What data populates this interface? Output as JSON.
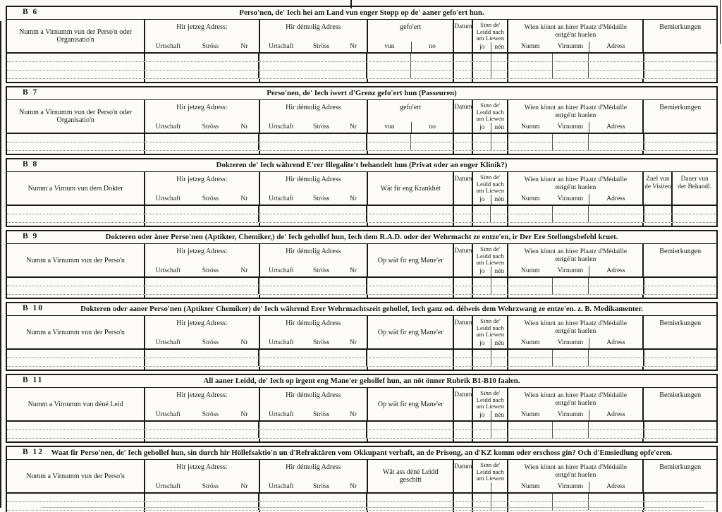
{
  "common": {
    "address_now": {
      "label": "Hir jetzeg Adress:",
      "subs": [
        "Urtschaft",
        "Ströss",
        "Nr"
      ]
    },
    "address_former": {
      "label": "Hir démolig Adress",
      "subs": [
        "Urtschaft",
        "Ströss",
        "Nr"
      ]
    },
    "datum_label": "Datum",
    "alive_col": {
      "lines": [
        "Sinn  de'",
        "Leidd  nach",
        "um Liewen"
      ],
      "subs": [
        "jo",
        "nén"
      ]
    },
    "medal_col": {
      "lines": [
        "Wien könnt an hirer Plaatz d'Médaille",
        "entgé'nt huelen"
      ],
      "subs": [
        "Numm",
        "Virnumm",
        "Adress"
      ]
    },
    "remarks_label": "Bemierkungen"
  },
  "sections": [
    {
      "id": "B 6",
      "title": "Perso'nen, de' Iech hei am Land vun enger Stopp  op de' aaner gefo'ert hun.",
      "name_label": "Numm a Virnumm vun der Perso'n oder Organisatio'n",
      "special": {
        "lines": [
          "gefo'ert"
        ],
        "subs": [
          "vun",
          "no"
        ]
      },
      "alive_subs": true,
      "rows": 3,
      "right": [
        [
          "Bemierkungen"
        ]
      ]
    },
    {
      "id": "B 7",
      "title": "Perso'nen, de' Iech iwert d'Grenz gefo'ert hun (Passeuren)",
      "name_label": "Numm a Virnumm vun der Perso'n oder Organisatio'n",
      "special": {
        "lines": [
          "gefo'ert"
        ],
        "subs": [
          "vun",
          "no"
        ]
      },
      "alive_subs": true,
      "rows": 2,
      "right": [
        [
          "Bemierkungen"
        ]
      ]
    },
    {
      "id": "B 8",
      "title": "Dokteren de' Iech während E'rer Illegalite't behandelt hun (Privat oder an enger Klinik?)",
      "name_label": "Numm a Virnum vun dem Dokter",
      "special": {
        "lines": [
          "Wät fir eng Krankhét"
        ]
      },
      "alive_subs": true,
      "rows": 2,
      "right": [
        [
          "Zuel vun",
          "de Visiten"
        ],
        [
          "Dauer vun",
          "der Behandl."
        ]
      ]
    },
    {
      "id": "B 9",
      "title": "Dokteren oder åner Perso'nen (Aptikter, Chemiker,) de' Iech gehollef hun, Iech dem R.A.D. oder der Wehrmacht ze entze'en, ir Der Ere Stellongsbefehl kruet.",
      "name_label": "Numm a Virnumm vun der Perso'n",
      "special": {
        "lines": [
          "Op wät fir eng Mane'er"
        ]
      },
      "alive_subs": true,
      "rows": 2,
      "right": [
        [
          "Bemierkungen"
        ]
      ]
    },
    {
      "id": "B 10",
      "title": "Dokteren oder aaner Perso'nen (Aptikter Chemiker) de' Iech während Erer Wehrmachtszeit gehollef,  Iech ganz od. délweis dem Wehrzwang ze entze'en. z. B. Medikamenter.",
      "name_label": "Numm a Virnumm vun der Perso'n",
      "special": {
        "lines": [
          "Op wät fir eng Mane'er"
        ]
      },
      "alive_subs": true,
      "rows": 2,
      "right": [
        [
          "Bemierkungen"
        ]
      ]
    },
    {
      "id": "B 11",
      "title": "All aaner Leidd, de' Iech op irgent eng Mane'er  gehollef hun, an nöt önner Rubrik B1-B10 faalen.",
      "name_label": "Numm a Virnumm vun déné Leid",
      "special": {
        "lines": [
          "Op wät fir eng Mane'er"
        ]
      },
      "alive_subs": true,
      "rows": 2,
      "right": [
        [
          "Bemierkungen"
        ]
      ]
    },
    {
      "id": "B 12",
      "title": "Waat fir Perso'nen, de' Iech gehollef hun, sin durch hir Höllefsaktio'n un d'Refraktären vom Okkupant verhaft, an de Prisong, an d'KZ komm oder  erschoss gin? Och d'Emsiedlung opfe'eren.",
      "name_label": "Numm a Virnumm vun der Perso'n",
      "special": {
        "lines": [
          "Wät ass déné Leidd",
          "geschitt"
        ]
      },
      "alive_subs": false,
      "rows": 2,
      "right": [
        [
          "Bemierkungen"
        ]
      ]
    }
  ]
}
